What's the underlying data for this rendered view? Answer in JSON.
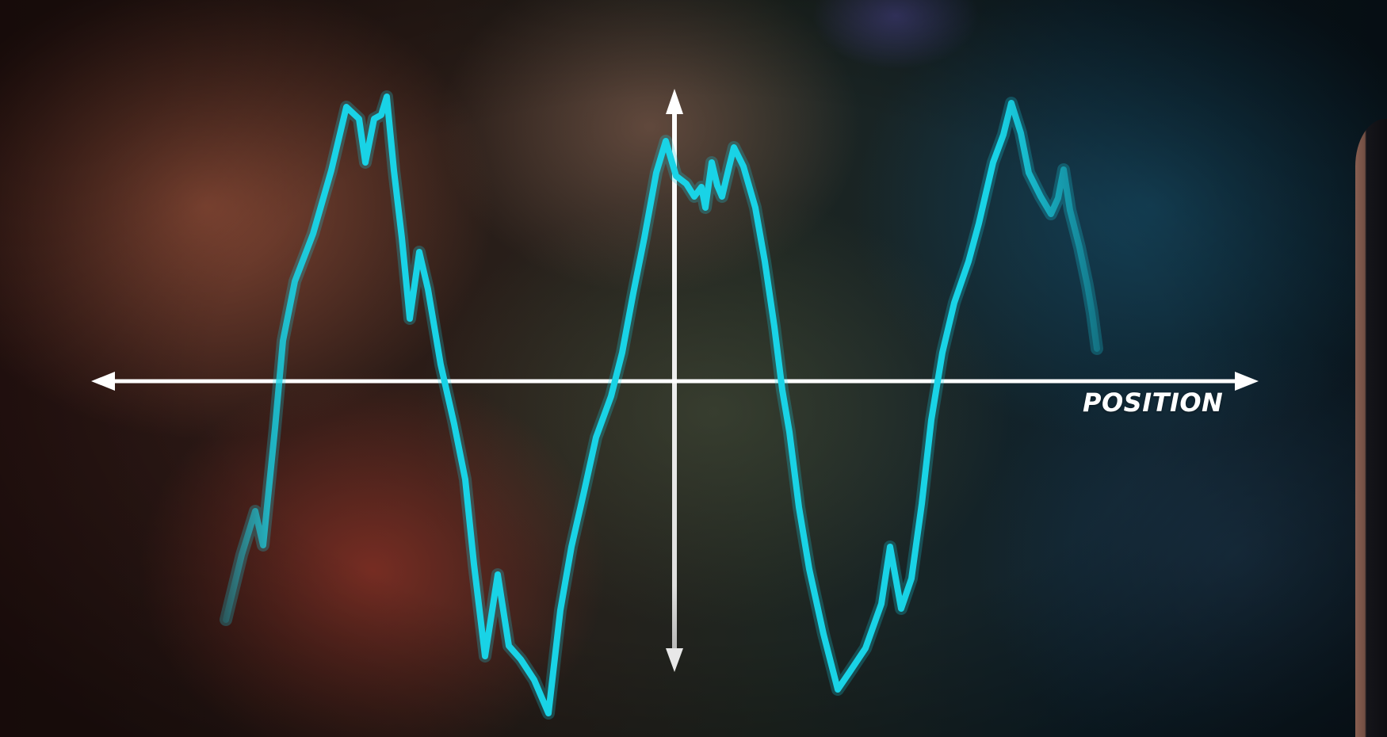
{
  "axes": {
    "x_label": "POSITION",
    "axis_color": "#ffffff",
    "wave_color": "#19d3e6"
  }
}
